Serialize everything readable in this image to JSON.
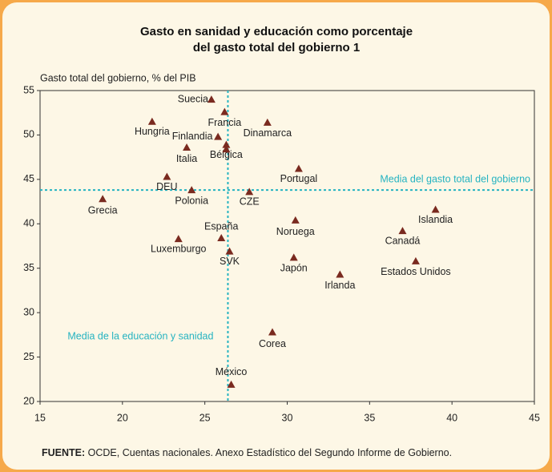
{
  "chart_data": {
    "type": "scatter",
    "title": [
      "Gasto en sanidad y educación como porcentaje",
      "del gasto total del gobierno 1"
    ],
    "y_label": "Gasto total del gobierno, % del PIB",
    "categories": [
      "Suecia",
      "Francia",
      "Hungria",
      "Dinamarca",
      "Finlandia",
      "Bélgica",
      null,
      "Italia",
      "Portugal",
      "DEU",
      "Polonia",
      "CZE",
      "Grecia",
      "Islandia",
      "Noruega",
      "Canadá",
      "Luxemburgo",
      "España",
      "SVK",
      "Estados Unidos",
      "Japón",
      "Irlanda",
      "Corea",
      "México"
    ],
    "x": [
      25.4,
      26.2,
      21.8,
      28.8,
      25.8,
      26.3,
      26.3,
      23.9,
      30.7,
      22.7,
      24.2,
      27.7,
      18.8,
      39.0,
      30.5,
      37.0,
      23.4,
      26.0,
      26.5,
      37.8,
      30.4,
      33.2,
      29.1,
      26.6
    ],
    "values": [
      54.0,
      52.6,
      51.5,
      51.4,
      49.8,
      48.9,
      48.4,
      48.6,
      46.2,
      45.3,
      43.8,
      43.6,
      42.8,
      41.6,
      40.4,
      39.2,
      38.3,
      38.4,
      36.9,
      35.8,
      36.2,
      34.3,
      27.8,
      21.9
    ],
    "color": "#7a2a1f",
    "xlim": [
      15,
      45
    ],
    "xticks": [
      15,
      20,
      25,
      30,
      35,
      40,
      45
    ],
    "ylim": [
      20,
      55
    ],
    "yticks": [
      20,
      25,
      30,
      35,
      40,
      45,
      50,
      55
    ],
    "reference_lines": [
      {
        "axis": "x",
        "value": 26.4,
        "label": "Media de la educación y sanidad",
        "color": "#25b3c1"
      },
      {
        "axis": "y",
        "value": 43.8,
        "label": "Media del gasto total del gobierno",
        "color": "#25b3c1"
      }
    ]
  },
  "source": {
    "label": "FUENTE:",
    "text": "OCDE, Cuentas nacionales. Anexo Estadístico del Segundo Informe de Gobierno."
  }
}
